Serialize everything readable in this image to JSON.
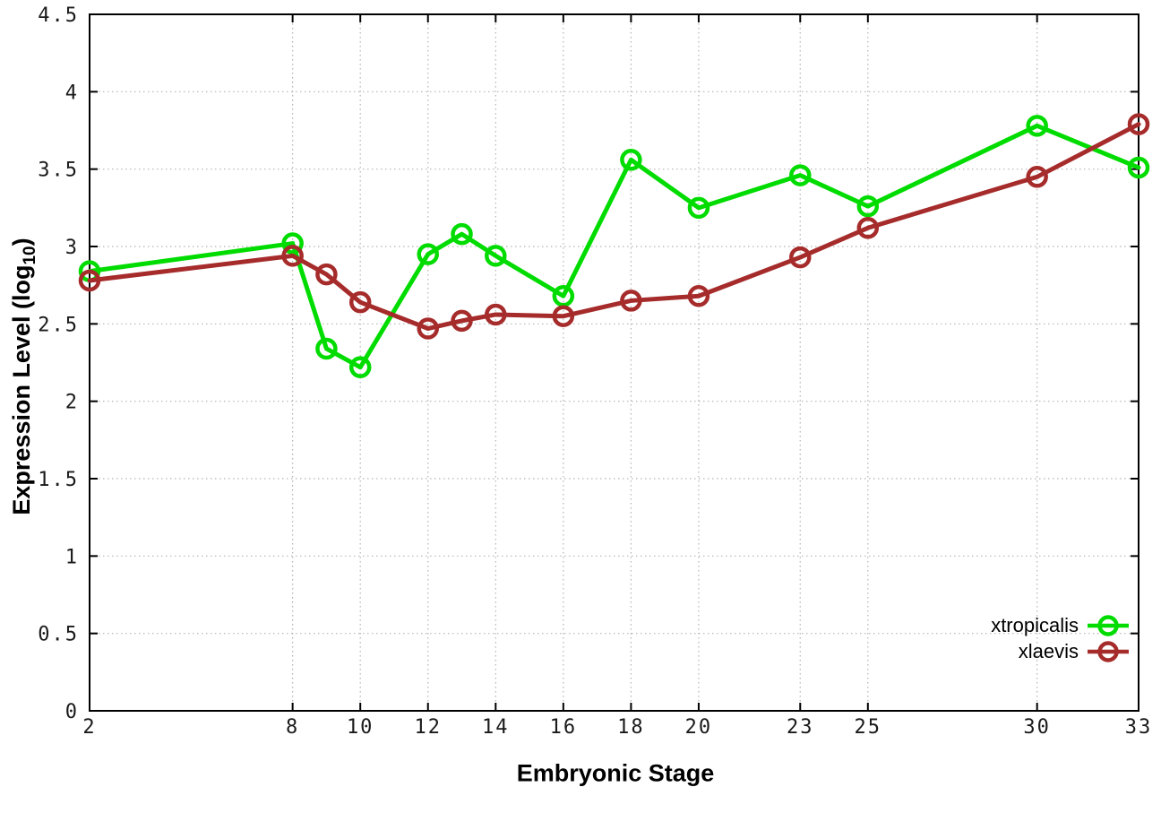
{
  "chart_data": {
    "type": "line",
    "title": "",
    "xlabel": "Embryonic Stage",
    "ylabel": "Expression Level (log10)",
    "ylabel_parts": {
      "prefix": "Expression Level (log",
      "subscript": "10",
      "suffix": ")"
    },
    "x": [
      2,
      8,
      9,
      10,
      12,
      13,
      14,
      16,
      18,
      20,
      23,
      25,
      30,
      33
    ],
    "series": [
      {
        "name": "xtropicalis",
        "color": "#00dc00",
        "values": [
          2.84,
          3.02,
          2.34,
          2.22,
          2.95,
          3.08,
          2.94,
          2.68,
          3.56,
          3.25,
          3.46,
          3.26,
          3.78,
          3.51
        ]
      },
      {
        "name": "xlaevis",
        "color": "#a62b2b",
        "values": [
          2.78,
          2.94,
          2.82,
          2.64,
          2.47,
          2.52,
          2.56,
          2.55,
          2.65,
          2.68,
          2.93,
          3.12,
          3.45,
          3.79
        ]
      }
    ],
    "xlim": [
      2,
      33
    ],
    "ylim": [
      0,
      4.5
    ],
    "x_ticks": [
      2,
      8,
      10,
      12,
      14,
      16,
      18,
      20,
      23,
      25,
      30,
      33
    ],
    "x_tick_labels": [
      "2",
      "8",
      "10",
      "12",
      "14",
      "16",
      "18",
      "20",
      "23",
      "25",
      "30",
      "33"
    ],
    "y_ticks": [
      0,
      0.5,
      1,
      1.5,
      2,
      2.5,
      3,
      3.5,
      4,
      4.5
    ],
    "y_tick_labels": [
      "0",
      "0.5",
      "1",
      "1.5",
      "2",
      "2.5",
      "3",
      "3.5",
      "4",
      "4.5"
    ],
    "grid": true,
    "legend_position": "inside-bottom-right",
    "marker": "open-circle",
    "colors": {
      "background": "#ffffff",
      "grid": "#b3b3b3",
      "axis": "#000000",
      "tick_labels": "#1a1a1a"
    }
  }
}
